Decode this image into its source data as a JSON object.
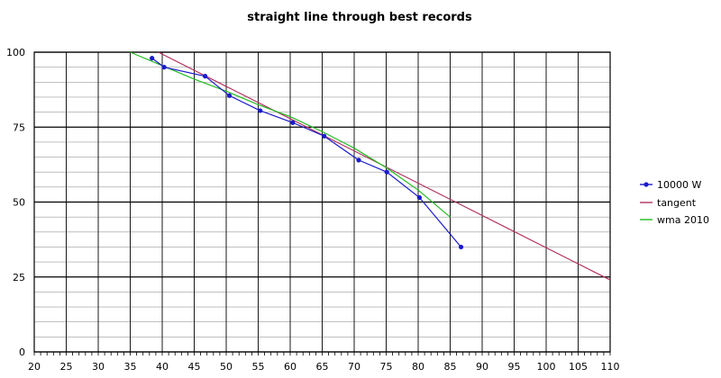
{
  "chart_data": {
    "type": "line",
    "title": "straight line through best records",
    "xlabel": "",
    "ylabel": "",
    "xlim": [
      20,
      110
    ],
    "ylim": [
      0,
      100
    ],
    "x_ticks": [
      20,
      25,
      30,
      35,
      40,
      45,
      50,
      55,
      60,
      65,
      70,
      75,
      80,
      85,
      90,
      95,
      100,
      105,
      110
    ],
    "y_ticks": [
      0,
      25,
      50,
      75,
      100
    ],
    "grid": true,
    "legend_position": "right",
    "series": [
      {
        "name": "10000 W",
        "color": "#1a1acc",
        "marker": "circle",
        "x": [
          38.4,
          40.3,
          46.7,
          50.5,
          55.3,
          60.4,
          65.3,
          70.7,
          75.1,
          80.2,
          86.7
        ],
        "y": [
          98,
          95,
          92,
          85.5,
          80.5,
          76.5,
          72,
          64,
          60,
          51.5,
          35
        ]
      },
      {
        "name": "tangent",
        "color": "#b03060",
        "marker": "none",
        "x": [
          39.4,
          110
        ],
        "y": [
          100,
          24
        ]
      },
      {
        "name": "wma 2010",
        "color": "#22bb22",
        "marker": "none",
        "x": [
          35,
          40,
          45,
          50,
          55,
          60,
          65,
          70,
          75,
          80,
          85
        ],
        "y": [
          100,
          95.5,
          91,
          87,
          82.5,
          78.5,
          73.5,
          68,
          61.5,
          54,
          45
        ]
      }
    ]
  }
}
